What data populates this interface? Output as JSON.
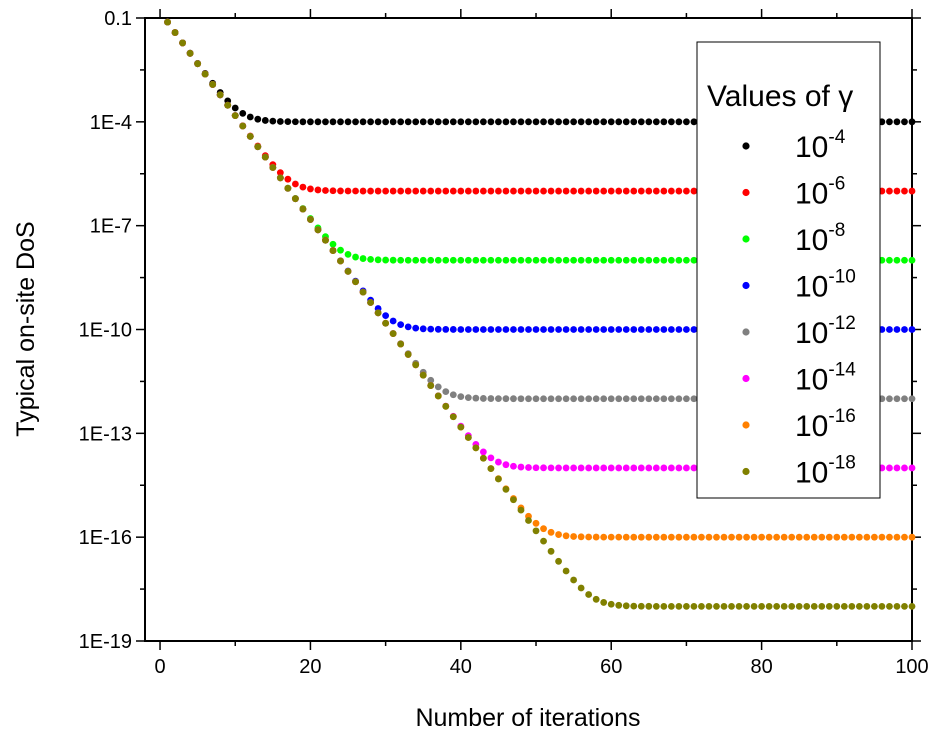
{
  "chart_data": {
    "type": "scatter",
    "xlabel": "Number of iterations",
    "ylabel": "Typical on-site DoS",
    "xlim": [
      -2,
      100
    ],
    "ylim_log10": [
      -19,
      -1
    ],
    "yscale": "log",
    "x_ticks": [
      0,
      20,
      40,
      60,
      80,
      100
    ],
    "x_tick_labels": [
      "0",
      "20",
      "40",
      "60",
      "80",
      "100"
    ],
    "y_ticks_log10": [
      -1,
      -4,
      -7,
      -10,
      -13,
      -16,
      -19
    ],
    "y_tick_labels": [
      "0.1",
      "1E-4",
      "1E-7",
      "1E-10",
      "1E-13",
      "1E-16",
      "1E-19"
    ],
    "legend": {
      "title": "Values of γ",
      "placement": "top-right"
    },
    "decay": {
      "start_log10": -1.12,
      "rate_per_iteration": 0.3
    },
    "x": {
      "start": 1,
      "end": 100,
      "step": 1
    },
    "series": [
      {
        "name": "10",
        "exponent": "-4",
        "plateau_log10": -4.0,
        "color": "#000000"
      },
      {
        "name": "10",
        "exponent": "-6",
        "plateau_log10": -6.0,
        "color": "#ff0000"
      },
      {
        "name": "10",
        "exponent": "-8",
        "plateau_log10": -8.0,
        "color": "#00ff00"
      },
      {
        "name": "10",
        "exponent": "-10",
        "plateau_log10": -10.0,
        "color": "#0000ff"
      },
      {
        "name": "10",
        "exponent": "-12",
        "plateau_log10": -12.0,
        "color": "#808080"
      },
      {
        "name": "10",
        "exponent": "-14",
        "plateau_log10": -14.0,
        "color": "#ff00ff"
      },
      {
        "name": "10",
        "exponent": "-16",
        "plateau_log10": -16.0,
        "color": "#ff8000"
      },
      {
        "name": "10",
        "exponent": "-18",
        "plateau_log10": -18.0,
        "color": "#808000"
      }
    ]
  }
}
